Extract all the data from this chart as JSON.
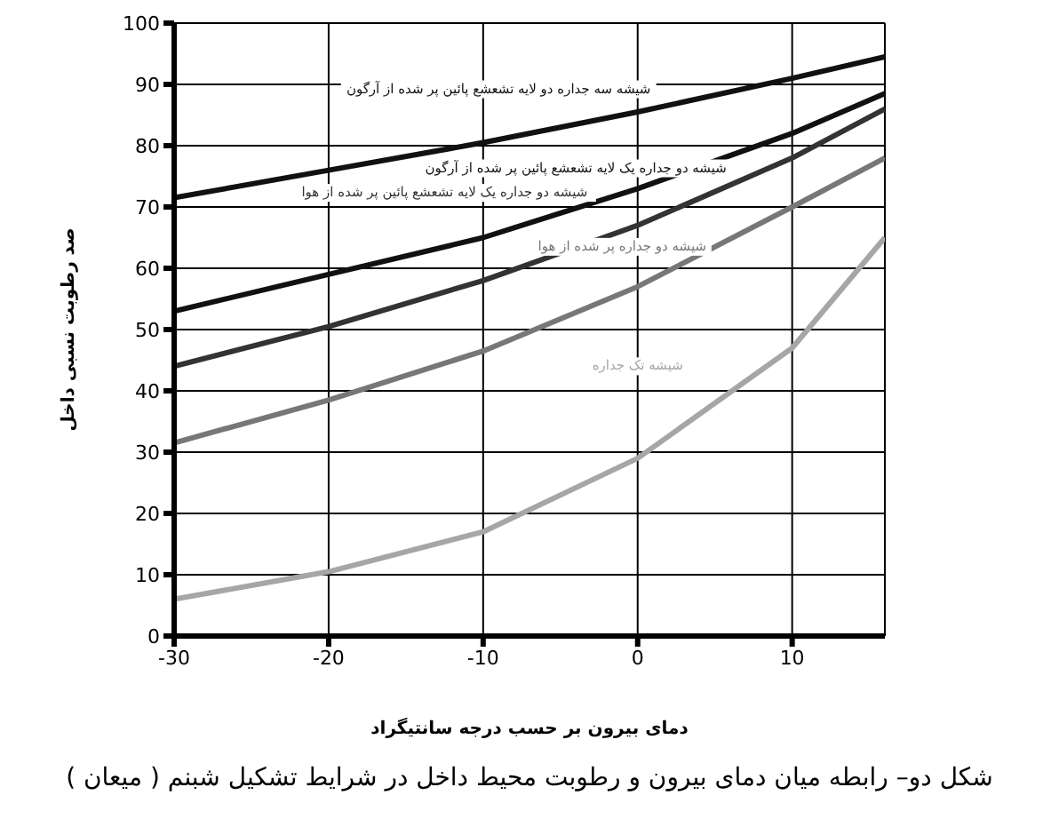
{
  "chart_data": {
    "type": "line",
    "xlabel": "دمای بیرون بر حسب درجه سانتیگراد",
    "ylabel": "صد رطوبت نسبی داخل",
    "annotations": [
      "شکل دو– رابطه میان دمای بیرون و رطوبت محیط داخل در شرایط تشکیل شبنم ( میعان )"
    ],
    "x": [
      -30,
      -20,
      -10,
      0,
      10,
      16
    ],
    "series": [
      {
        "name": "شیشه سه جداره دو لایه تشعشع پائین پر شده از آرگون",
        "color": "#111111",
        "values": [
          71.5,
          76,
          80.5,
          85.5,
          91,
          94.5
        ]
      },
      {
        "name": "شیشه دو جداره یک لایه تشعشع پائین پر شده از آرگون",
        "color": "#111111",
        "values": [
          53,
          59,
          65,
          73,
          82,
          88.5
        ]
      },
      {
        "name": "شیشه دو جداره یک لایه تشعشع پائین پر شده از هوا",
        "color": "#333333",
        "values": [
          44,
          50.5,
          58,
          67,
          78,
          86
        ]
      },
      {
        "name": "شیشه دو جداره پر شده از هوا",
        "color": "#777777",
        "values": [
          31.5,
          38.5,
          46.5,
          57,
          70,
          78
        ]
      },
      {
        "name": "شیشه تک جداره",
        "color": "#a6a6a6",
        "values": [
          6,
          10.5,
          17,
          29,
          47,
          65
        ]
      }
    ],
    "xlim": [
      -30,
      16
    ],
    "xticks": [
      -30,
      -20,
      -10,
      0,
      10
    ],
    "ylim": [
      0,
      100
    ],
    "yticks": [
      0,
      10,
      20,
      30,
      40,
      50,
      60,
      70,
      80,
      90,
      100
    ],
    "grid": true,
    "marker": "none",
    "line_style": "solid",
    "legend": false
  }
}
